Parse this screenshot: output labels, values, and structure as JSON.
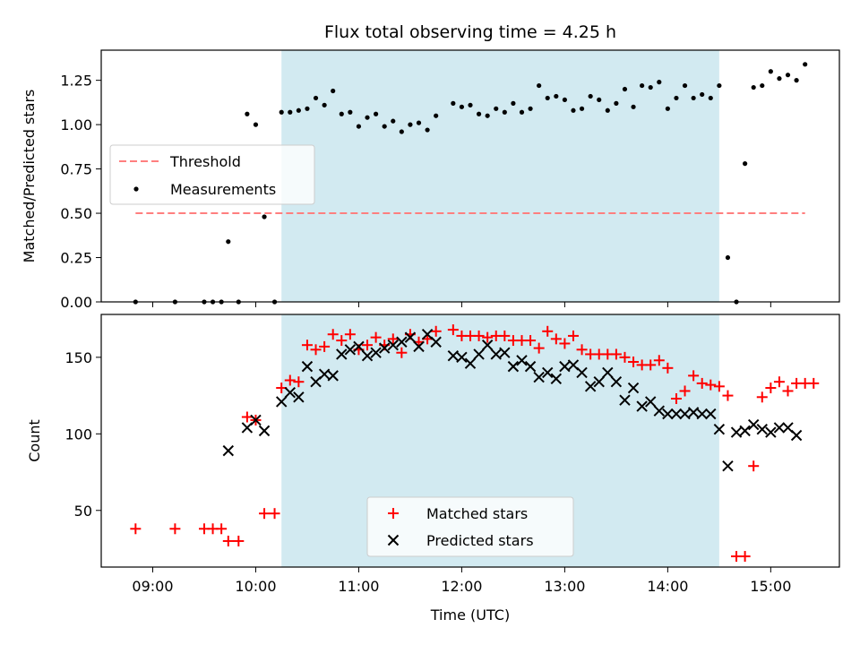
{
  "title": "Flux total observing time = 4.25 h",
  "colors": {
    "highlight": "#add8e6",
    "threshold": "#ff7f7f",
    "measurements": "#000000",
    "matched": "#ff0000",
    "predicted": "#000000"
  },
  "chart_data": [
    {
      "type": "scatter",
      "panel": "top",
      "ylabel": "Matched/Predicted stars",
      "ylim": [
        0,
        1.42
      ],
      "yticks": [
        "0.00",
        "0.25",
        "0.50",
        "0.75",
        "1.00",
        "1.25"
      ],
      "xlim": [
        "08:30",
        "15:40"
      ],
      "highlight_span": [
        "10:15",
        "14:30"
      ],
      "grid": false,
      "legend_placement": "center-left",
      "series": [
        {
          "name": "Threshold",
          "kind": "dashed-line",
          "x": [
            "08:50",
            "15:20"
          ],
          "y": [
            0.5,
            0.5
          ]
        },
        {
          "name": "Measurements",
          "kind": "dot",
          "points": [
            [
              "08:50",
              0
            ],
            [
              "09:13",
              0
            ],
            [
              "09:30",
              0
            ],
            [
              "09:35",
              0
            ],
            [
              "09:40",
              0
            ],
            [
              "09:44",
              0.34
            ],
            [
              "09:50",
              0
            ],
            [
              "09:55",
              1.06
            ],
            [
              "10:00",
              1.0
            ],
            [
              "10:05",
              0.48
            ],
            [
              "10:11",
              0
            ],
            [
              "10:15",
              1.07
            ],
            [
              "10:20",
              1.07
            ],
            [
              "10:25",
              1.08
            ],
            [
              "10:30",
              1.09
            ],
            [
              "10:35",
              1.15
            ],
            [
              "10:40",
              1.11
            ],
            [
              "10:45",
              1.19
            ],
            [
              "10:50",
              1.06
            ],
            [
              "10:55",
              1.07
            ],
            [
              "11:00",
              0.99
            ],
            [
              "11:05",
              1.04
            ],
            [
              "11:10",
              1.06
            ],
            [
              "11:15",
              0.99
            ],
            [
              "11:20",
              1.02
            ],
            [
              "11:25",
              0.96
            ],
            [
              "11:30",
              1.0
            ],
            [
              "11:35",
              1.01
            ],
            [
              "11:40",
              0.97
            ],
            [
              "11:45",
              1.05
            ],
            [
              "11:55",
              1.12
            ],
            [
              "12:00",
              1.1
            ],
            [
              "12:05",
              1.11
            ],
            [
              "12:10",
              1.06
            ],
            [
              "12:15",
              1.05
            ],
            [
              "12:20",
              1.09
            ],
            [
              "12:25",
              1.07
            ],
            [
              "12:30",
              1.12
            ],
            [
              "12:35",
              1.07
            ],
            [
              "12:40",
              1.09
            ],
            [
              "12:45",
              1.22
            ],
            [
              "12:50",
              1.15
            ],
            [
              "12:55",
              1.16
            ],
            [
              "13:00",
              1.14
            ],
            [
              "13:05",
              1.08
            ],
            [
              "13:10",
              1.09
            ],
            [
              "13:15",
              1.16
            ],
            [
              "13:20",
              1.14
            ],
            [
              "13:25",
              1.08
            ],
            [
              "13:30",
              1.12
            ],
            [
              "13:35",
              1.2
            ],
            [
              "13:40",
              1.1
            ],
            [
              "13:45",
              1.22
            ],
            [
              "13:50",
              1.21
            ],
            [
              "13:55",
              1.24
            ],
            [
              "14:00",
              1.09
            ],
            [
              "14:05",
              1.15
            ],
            [
              "14:10",
              1.22
            ],
            [
              "14:15",
              1.15
            ],
            [
              "14:20",
              1.17
            ],
            [
              "14:25",
              1.15
            ],
            [
              "14:30",
              1.22
            ],
            [
              "14:35",
              0.25
            ],
            [
              "14:40",
              0
            ],
            [
              "14:45",
              0.78
            ],
            [
              "14:50",
              1.21
            ],
            [
              "14:55",
              1.22
            ],
            [
              "15:00",
              1.3
            ],
            [
              "15:05",
              1.26
            ],
            [
              "15:10",
              1.28
            ],
            [
              "15:15",
              1.25
            ],
            [
              "15:20",
              1.34
            ]
          ]
        }
      ]
    },
    {
      "type": "scatter",
      "panel": "bottom",
      "ylabel": "Count",
      "xlabel": "Time (UTC)",
      "ylim": [
        13,
        178
      ],
      "yticks": [
        "50",
        "100",
        "150"
      ],
      "xticks": [
        "09:00",
        "10:00",
        "11:00",
        "12:00",
        "13:00",
        "14:00",
        "15:00"
      ],
      "xlim": [
        "08:30",
        "15:40"
      ],
      "highlight_span": [
        "10:15",
        "14:30"
      ],
      "grid": false,
      "legend_placement": "bottom-center",
      "series": [
        {
          "name": "Matched stars",
          "kind": "plus",
          "points": [
            [
              "08:50",
              38
            ],
            [
              "09:13",
              38
            ],
            [
              "09:30",
              38
            ],
            [
              "09:35",
              38
            ],
            [
              "09:40",
              38
            ],
            [
              "09:44",
              30
            ],
            [
              "09:50",
              30
            ],
            [
              "09:55",
              111
            ],
            [
              "10:00",
              109
            ],
            [
              "10:05",
              48
            ],
            [
              "10:11",
              48
            ],
            [
              "10:15",
              130
            ],
            [
              "10:20",
              135
            ],
            [
              "10:25",
              134
            ],
            [
              "10:30",
              158
            ],
            [
              "10:35",
              155
            ],
            [
              "10:40",
              157
            ],
            [
              "10:45",
              165
            ],
            [
              "10:50",
              161
            ],
            [
              "10:55",
              165
            ],
            [
              "11:00",
              155
            ],
            [
              "11:05",
              158
            ],
            [
              "11:10",
              163
            ],
            [
              "11:15",
              158
            ],
            [
              "11:20",
              162
            ],
            [
              "11:25",
              153
            ],
            [
              "11:30",
              165
            ],
            [
              "11:35",
              160
            ],
            [
              "11:40",
              162
            ],
            [
              "11:45",
              167
            ],
            [
              "11:55",
              168
            ],
            [
              "12:00",
              164
            ],
            [
              "12:05",
              164
            ],
            [
              "12:10",
              164
            ],
            [
              "12:15",
              163
            ],
            [
              "12:20",
              164
            ],
            [
              "12:25",
              164
            ],
            [
              "12:30",
              161
            ],
            [
              "12:35",
              161
            ],
            [
              "12:40",
              161
            ],
            [
              "12:45",
              156
            ],
            [
              "12:50",
              167
            ],
            [
              "12:55",
              162
            ],
            [
              "13:00",
              159
            ],
            [
              "13:05",
              164
            ],
            [
              "13:10",
              155
            ],
            [
              "13:15",
              152
            ],
            [
              "13:20",
              152
            ],
            [
              "13:25",
              152
            ],
            [
              "13:30",
              152
            ],
            [
              "13:35",
              150
            ],
            [
              "13:40",
              147
            ],
            [
              "13:45",
              145
            ],
            [
              "13:50",
              145
            ],
            [
              "13:55",
              148
            ],
            [
              "14:00",
              143
            ],
            [
              "14:05",
              123
            ],
            [
              "14:10",
              128
            ],
            [
              "14:15",
              138
            ],
            [
              "14:20",
              133
            ],
            [
              "14:25",
              132
            ],
            [
              "14:30",
              131
            ],
            [
              "14:35",
              125
            ],
            [
              "14:40",
              20
            ],
            [
              "14:45",
              20
            ],
            [
              "14:50",
              79
            ],
            [
              "14:55",
              124
            ],
            [
              "15:00",
              130
            ],
            [
              "15:05",
              134
            ],
            [
              "15:10",
              128
            ],
            [
              "15:15",
              133
            ],
            [
              "15:20",
              133
            ],
            [
              "15:25",
              133
            ]
          ]
        },
        {
          "name": "Predicted stars",
          "kind": "x",
          "points": [
            [
              "09:44",
              89
            ],
            [
              "09:55",
              104
            ],
            [
              "10:00",
              109
            ],
            [
              "10:05",
              102
            ],
            [
              "10:15",
              121
            ],
            [
              "10:20",
              127
            ],
            [
              "10:25",
              124
            ],
            [
              "10:30",
              144
            ],
            [
              "10:35",
              134
            ],
            [
              "10:40",
              139
            ],
            [
              "10:45",
              138
            ],
            [
              "10:50",
              152
            ],
            [
              "10:55",
              155
            ],
            [
              "11:00",
              157
            ],
            [
              "11:05",
              151
            ],
            [
              "11:10",
              153
            ],
            [
              "11:15",
              156
            ],
            [
              "11:20",
              158
            ],
            [
              "11:25",
              160
            ],
            [
              "11:30",
              163
            ],
            [
              "11:35",
              157
            ],
            [
              "11:40",
              165
            ],
            [
              "11:45",
              160
            ],
            [
              "11:55",
              151
            ],
            [
              "12:00",
              150
            ],
            [
              "12:05",
              146
            ],
            [
              "12:10",
              152
            ],
            [
              "12:15",
              158
            ],
            [
              "12:20",
              152
            ],
            [
              "12:25",
              153
            ],
            [
              "12:30",
              144
            ],
            [
              "12:35",
              148
            ],
            [
              "12:40",
              144
            ],
            [
              "12:45",
              137
            ],
            [
              "12:50",
              140
            ],
            [
              "12:55",
              136
            ],
            [
              "13:00",
              144
            ],
            [
              "13:05",
              145
            ],
            [
              "13:10",
              140
            ],
            [
              "13:15",
              131
            ],
            [
              "13:20",
              134
            ],
            [
              "13:25",
              140
            ],
            [
              "13:30",
              134
            ],
            [
              "13:35",
              122
            ],
            [
              "13:40",
              130
            ],
            [
              "13:45",
              118
            ],
            [
              "13:50",
              121
            ],
            [
              "13:55",
              115
            ],
            [
              "14:00",
              113
            ],
            [
              "14:05",
              113
            ],
            [
              "14:10",
              113
            ],
            [
              "14:15",
              114
            ],
            [
              "14:20",
              113
            ],
            [
              "14:25",
              113
            ],
            [
              "14:30",
              103
            ],
            [
              "14:35",
              79
            ],
            [
              "14:40",
              101
            ],
            [
              "14:45",
              102
            ],
            [
              "14:50",
              106
            ],
            [
              "14:55",
              103
            ],
            [
              "15:00",
              101
            ],
            [
              "15:05",
              104
            ],
            [
              "15:10",
              104
            ],
            [
              "15:15",
              99
            ]
          ]
        }
      ]
    }
  ]
}
